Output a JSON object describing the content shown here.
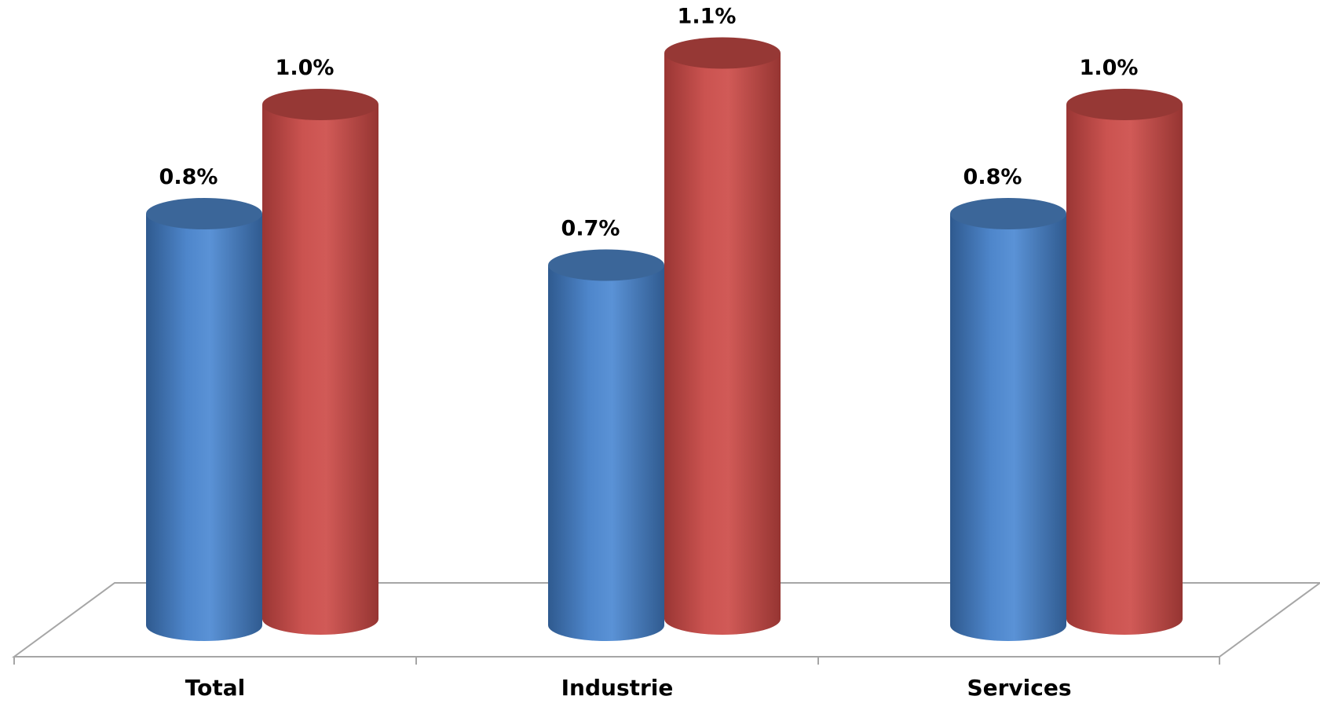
{
  "chart_data": {
    "type": "bar",
    "style": "3d-cylinder",
    "categories": [
      "Total",
      "Industrie",
      "Services"
    ],
    "series": [
      {
        "values": [
          0.8,
          0.7,
          0.8
        ],
        "labels": [
          "0.8%",
          "0.7%",
          "0.8%"
        ],
        "color": "#4F81BD"
      },
      {
        "values": [
          1.0,
          1.1,
          1.0
        ],
        "labels": [
          "1.0%",
          "1.1%",
          "1.0%"
        ],
        "color": "#C0504D"
      }
    ],
    "ylim": [
      0,
      1.2
    ],
    "grid": false,
    "legend": "none"
  }
}
